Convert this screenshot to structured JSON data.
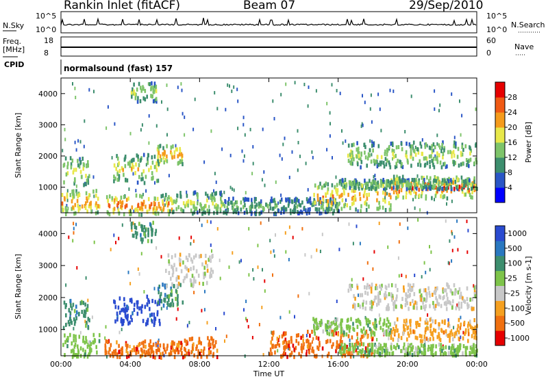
{
  "header": {
    "station": "Rankin Inlet (fitACF)",
    "beam": "Beam 07",
    "date": "29/Sep/2010"
  },
  "top_panels": {
    "nsky_label": "N.Sky",
    "nsky_ticks": [
      "10^5",
      "10^0"
    ],
    "nsearch_label": "N.Search",
    "nsearch_ticks": [
      "10^5",
      "10^0"
    ],
    "freq_label": "Freq.",
    "freq_unit": "[MHz]",
    "freq_ticks": [
      "18",
      "8"
    ],
    "nave_label": "Nave",
    "nave_ticks": [
      "60",
      "0"
    ],
    "cpid_label": "CPID",
    "cpid_text": "normalsound (fast) 157"
  },
  "chart_data": [
    {
      "type": "heatmap",
      "name": "power-panel",
      "xlabel": "",
      "ylabel": "Slant Range [km]",
      "x_ticks": [
        "00:00",
        "04:00",
        "08:00",
        "12:00",
        "16:00",
        "20:00",
        "00:00"
      ],
      "xlim_hours": [
        0,
        24
      ],
      "ylim": [
        180,
        4500
      ],
      "y_ticks": [
        1000,
        2000,
        3000,
        4000
      ],
      "colorbar": {
        "label": "Power [dB]",
        "ticks": [
          4,
          8,
          12,
          16,
          20,
          24,
          28
        ],
        "range": [
          0,
          32
        ],
        "colors": [
          "#0000ff",
          "#2a56c6",
          "#3d8e6e",
          "#7ec46a",
          "#e8e84a",
          "#f59b1c",
          "#f05a14",
          "#e60000"
        ]
      },
      "patches": [
        {
          "t0": 0.1,
          "t1": 1.6,
          "r0": 1100,
          "r1": 2000,
          "level": 0.6
        },
        {
          "t0": 0.0,
          "t1": 2.2,
          "r0": 200,
          "r1": 950,
          "level": 0.8
        },
        {
          "t0": 2.6,
          "t1": 6.4,
          "r0": 180,
          "r1": 800,
          "level": 0.85
        },
        {
          "t0": 3.0,
          "t1": 5.6,
          "r0": 1200,
          "r1": 2100,
          "level": 0.6
        },
        {
          "t0": 5.5,
          "t1": 7.0,
          "r0": 1800,
          "r1": 2400,
          "level": 0.75
        },
        {
          "t0": 6.0,
          "t1": 9.3,
          "r0": 200,
          "r1": 900,
          "level": 0.55
        },
        {
          "t0": 4.0,
          "t1": 5.5,
          "r0": 3800,
          "r1": 4400,
          "level": 0.5
        },
        {
          "t0": 9.3,
          "t1": 12.5,
          "r0": 200,
          "r1": 700,
          "level": 0.4
        },
        {
          "t0": 12.5,
          "t1": 16.0,
          "r0": 200,
          "r1": 700,
          "level": 0.35
        },
        {
          "t0": 14.5,
          "t1": 19.0,
          "r0": 300,
          "r1": 1200,
          "level": 0.75
        },
        {
          "t0": 16.5,
          "t1": 24.0,
          "r0": 1700,
          "r1": 2500,
          "level": 0.55
        },
        {
          "t0": 19.0,
          "t1": 24.0,
          "r0": 700,
          "r1": 1400,
          "level": 0.9
        },
        {
          "t0": 16.0,
          "t1": 24.0,
          "r0": 1000,
          "r1": 1300,
          "level": 0.5
        }
      ]
    },
    {
      "type": "heatmap",
      "name": "velocity-panel",
      "xlabel": "Time UT",
      "ylabel": "Slant Range [km]",
      "x_ticks": [
        "00:00",
        "04:00",
        "08:00",
        "12:00",
        "16:00",
        "20:00",
        "00:00"
      ],
      "xlim_hours": [
        0,
        24
      ],
      "ylim": [
        180,
        4500
      ],
      "y_ticks": [
        1000,
        2000,
        3000,
        4000
      ],
      "colorbar": {
        "label": "Velocity [m s-1]",
        "ticks": [
          "1000",
          "500",
          "100",
          "25",
          "-25",
          "-100",
          "-500",
          "-1000"
        ],
        "colors": [
          "#2a4bd0",
          "#2a78c0",
          "#3d8e6e",
          "#7ec44a",
          "#c8c8c8",
          "#f5a020",
          "#f07010",
          "#e60000"
        ]
      },
      "patches": [
        {
          "t0": 0.1,
          "t1": 1.7,
          "r0": 1100,
          "r1": 2000,
          "color": 2
        },
        {
          "t0": 0.0,
          "t1": 2.2,
          "r0": 200,
          "r1": 900,
          "color": 3
        },
        {
          "t0": 3.0,
          "t1": 5.8,
          "r0": 1200,
          "r1": 2100,
          "color": 0
        },
        {
          "t0": 5.5,
          "t1": 7.0,
          "r0": 1800,
          "r1": 2500,
          "color": 2
        },
        {
          "t0": 6.0,
          "t1": 8.8,
          "r0": 2400,
          "r1": 3400,
          "color": 4
        },
        {
          "t0": 4.0,
          "t1": 5.5,
          "r0": 3800,
          "r1": 4400,
          "color": 2
        },
        {
          "t0": 7.0,
          "t1": 9.0,
          "r0": 200,
          "r1": 800,
          "color": 6
        },
        {
          "t0": 2.5,
          "t1": 7.0,
          "r0": 180,
          "r1": 700,
          "color": 6
        },
        {
          "t0": 12.0,
          "t1": 18.0,
          "r0": 200,
          "r1": 1000,
          "color": 6
        },
        {
          "t0": 14.5,
          "t1": 19.0,
          "r0": 900,
          "r1": 1400,
          "color": 3
        },
        {
          "t0": 16.5,
          "t1": 24.0,
          "r0": 1700,
          "r1": 2500,
          "color": 4
        },
        {
          "t0": 19.0,
          "t1": 24.0,
          "r0": 700,
          "r1": 1400,
          "color": 5
        },
        {
          "t0": 16.0,
          "t1": 24.0,
          "r0": 250,
          "r1": 600,
          "color": 3
        }
      ]
    }
  ]
}
